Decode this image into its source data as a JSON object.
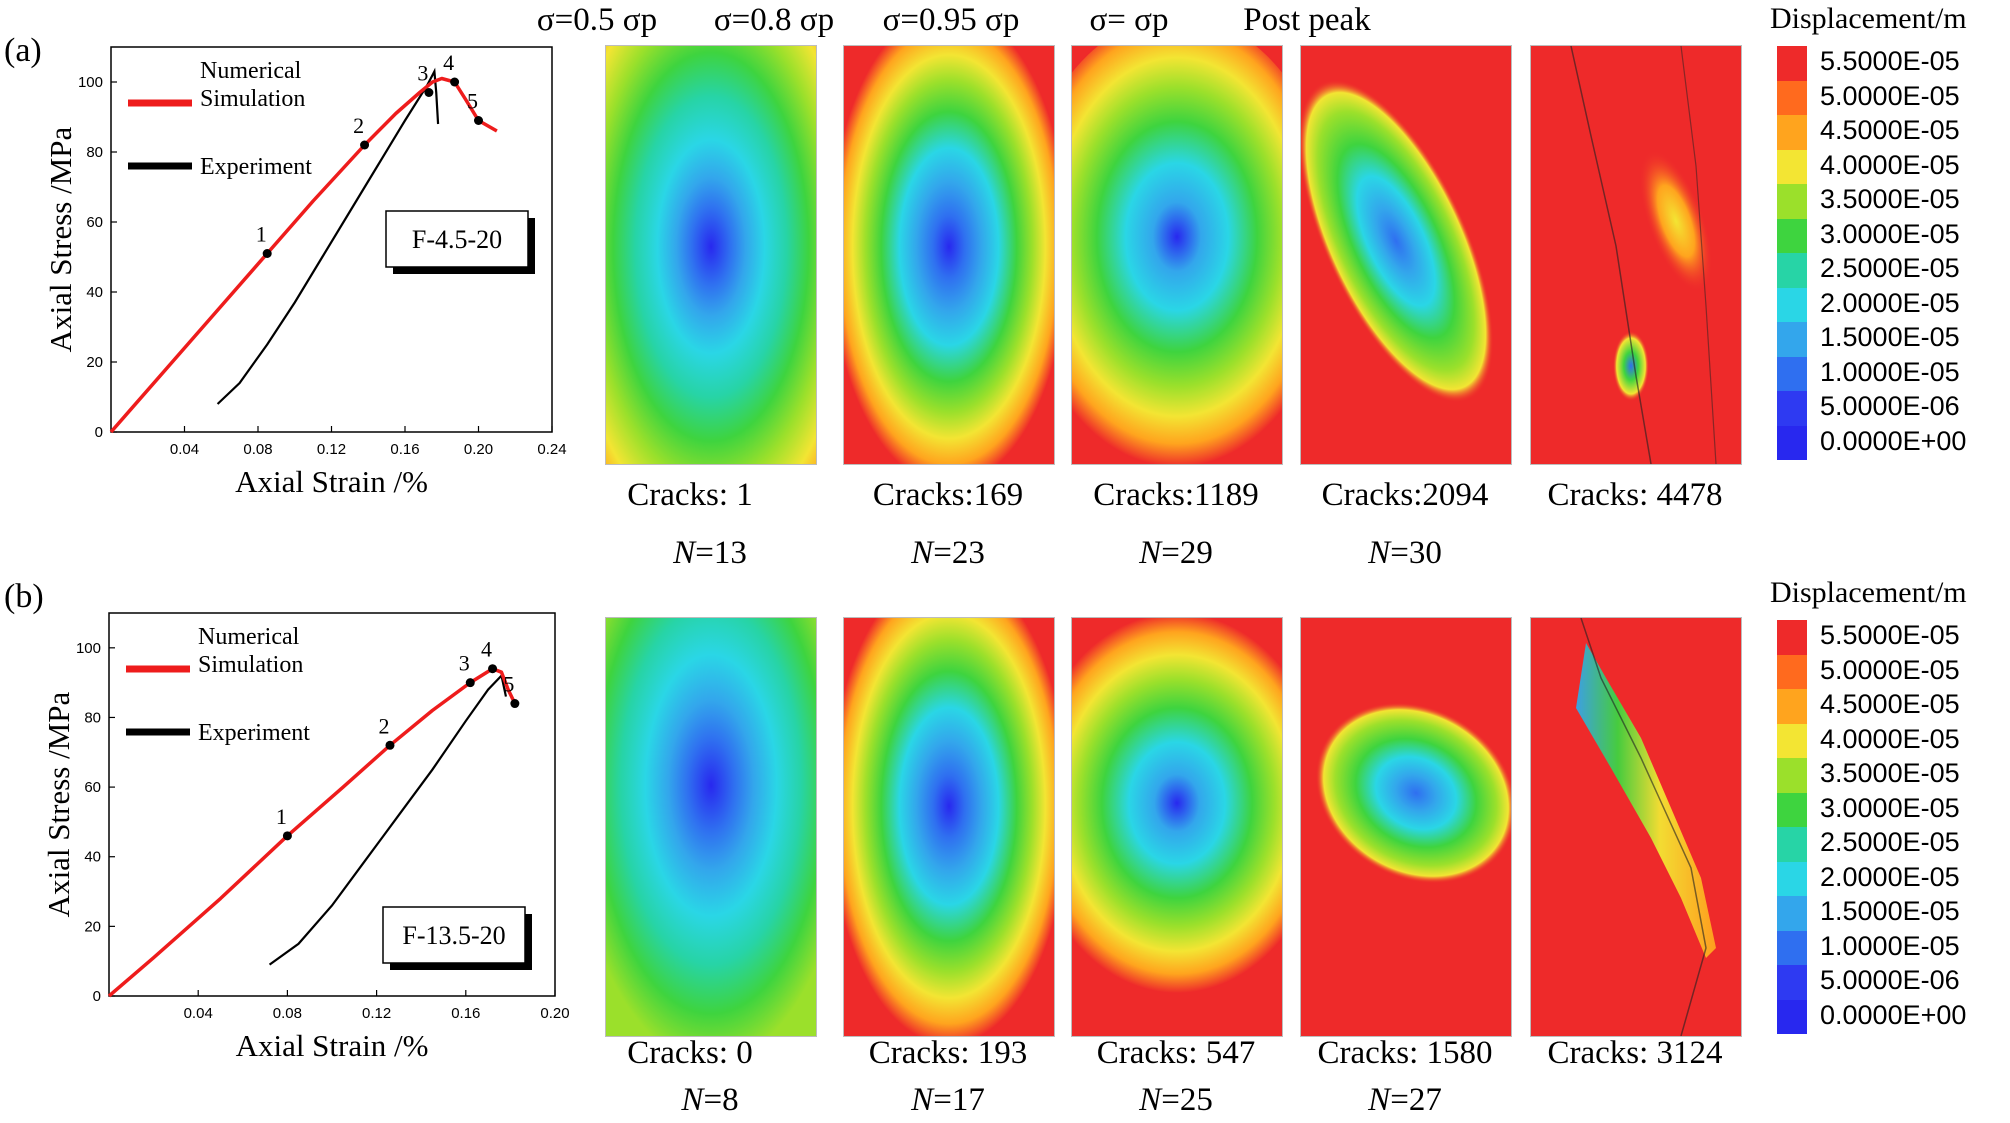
{
  "colors": {
    "simulation": "#ee1c1c",
    "experiment": "#000000",
    "colormap": [
      "#ee2a2a",
      "#ff6a1e",
      "#ffa41e",
      "#f3e533",
      "#9be02b",
      "#3ed43f",
      "#27d4a6",
      "#2ad6e6",
      "#33a6ec",
      "#2f6ff0",
      "#2e3af2",
      "#2828ef"
    ]
  },
  "legend": {
    "title": "Displacement/m",
    "labels": [
      "5.5000E-05",
      "5.0000E-05",
      "4.5000E-05",
      "4.0000E-05",
      "3.5000E-05",
      "3.0000E-05",
      "2.5000E-05",
      "2.0000E-05",
      "1.5000E-05",
      "1.0000E-05",
      "5.0000E-06",
      "0.0000E+00"
    ]
  },
  "stage_titles": [
    "σ=0.5 σp",
    "σ=0.8 σp",
    "σ=0.95 σp",
    "σ= σp",
    "Post peak"
  ],
  "panels": [
    {
      "tag": "(a)",
      "specimen": "F-4.5-20",
      "cracks": [
        "Cracks: 1",
        "Cracks:169",
        "Cracks:1189",
        "Cracks:2094",
        "Cracks: 4478"
      ],
      "n_values": [
        "13",
        "23",
        "29",
        "30"
      ],
      "n_prefix": "N",
      "chart_data": {
        "type": "line",
        "xlabel": "Axial Strain /%",
        "ylabel": "Axial Stress /MPa",
        "xlim": [
          0,
          0.24
        ],
        "ylim": [
          0,
          110
        ],
        "xticks": [
          "0.04",
          "0.08",
          "0.12",
          "0.16",
          "0.20",
          "0.24"
        ],
        "yticks": [
          "0",
          "20",
          "40",
          "60",
          "80",
          "100"
        ],
        "legend": [
          "Numerical Simulation",
          "Experiment"
        ],
        "series": [
          {
            "name": "Numerical Simulation",
            "x": [
              0,
              0.03,
              0.06,
              0.085,
              0.11,
              0.138,
              0.155,
              0.168,
              0.175,
              0.18,
              0.187,
              0.193,
              0.2,
              0.21
            ],
            "y": [
              0,
              18,
              36,
              51,
              66,
              82,
              91,
              97,
              100,
              101,
              100,
              95,
              89,
              86
            ]
          },
          {
            "name": "Experiment",
            "x": [
              0.058,
              0.07,
              0.085,
              0.1,
              0.115,
              0.13,
              0.145,
              0.16,
              0.172,
              0.176,
              0.177,
              0.178
            ],
            "y": [
              8,
              14,
              25,
              37,
              50,
              63,
              76,
              89,
              99,
              103,
              97,
              88
            ]
          }
        ],
        "annotations": [
          {
            "label": "1",
            "x": 0.085,
            "y": 51
          },
          {
            "label": "2",
            "x": 0.138,
            "y": 82
          },
          {
            "label": "3",
            "x": 0.173,
            "y": 97
          },
          {
            "label": "4",
            "x": 0.187,
            "y": 100
          },
          {
            "label": "5",
            "x": 0.2,
            "y": 89
          }
        ]
      }
    },
    {
      "tag": "(b)",
      "specimen": "F-13.5-20",
      "cracks": [
        "Cracks: 0",
        "Cracks: 193",
        "Cracks: 547",
        "Cracks: 1580",
        "Cracks: 3124"
      ],
      "n_values": [
        "8",
        "17",
        "25",
        "27"
      ],
      "n_prefix": "N",
      "chart_data": {
        "type": "line",
        "xlabel": "Axial Strain /%",
        "ylabel": "Axial Stress /MPa",
        "xlim": [
          0,
          0.2
        ],
        "ylim": [
          0,
          110
        ],
        "xticks": [
          "0.04",
          "0.08",
          "0.12",
          "0.16",
          "0.20"
        ],
        "yticks": [
          "0",
          "20",
          "40",
          "60",
          "80",
          "100"
        ],
        "legend": [
          "Numerical Simulation",
          "Experiment"
        ],
        "series": [
          {
            "name": "Numerical Simulation",
            "x": [
              0,
              0.02,
              0.05,
              0.08,
              0.105,
              0.126,
              0.145,
              0.162,
              0.172,
              0.176,
              0.179,
              0.182
            ],
            "y": [
              0,
              11,
              28,
              46,
              60,
              72,
              82,
              90,
              94,
              93,
              88,
              84
            ]
          },
          {
            "name": "Experiment",
            "x": [
              0.072,
              0.085,
              0.1,
              0.115,
              0.13,
              0.145,
              0.16,
              0.17,
              0.176,
              0.178
            ],
            "y": [
              9,
              15,
              26,
              39,
              52,
              65,
              79,
              88,
              92,
              86
            ]
          }
        ],
        "annotations": [
          {
            "label": "1",
            "x": 0.08,
            "y": 46
          },
          {
            "label": "2",
            "x": 0.126,
            "y": 72
          },
          {
            "label": "3",
            "x": 0.162,
            "y": 90
          },
          {
            "label": "4",
            "x": 0.172,
            "y": 94
          },
          {
            "label": "5",
            "x": 0.182,
            "y": 84
          }
        ]
      }
    }
  ]
}
